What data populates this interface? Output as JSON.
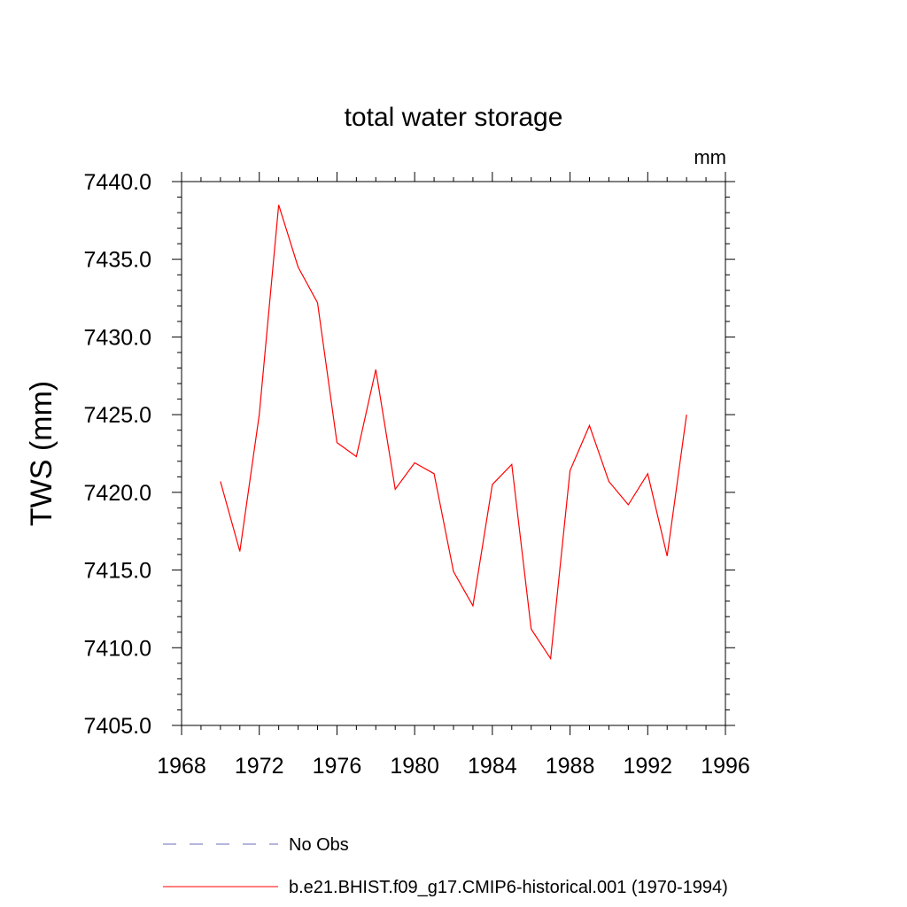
{
  "chart_data": {
    "type": "line",
    "title": "total water storage",
    "units_label": "mm",
    "ylabel": "TWS  (mm)",
    "xlabel": "",
    "xlim": [
      1968,
      1996
    ],
    "ylim": [
      7405.0,
      7440.0
    ],
    "x_ticks": [
      1968,
      1972,
      1976,
      1980,
      1984,
      1988,
      1992,
      1996
    ],
    "x_tick_labels": [
      "1968",
      "1972",
      "1976",
      "1980",
      "1984",
      "1988",
      "1992",
      "1996"
    ],
    "y_ticks": [
      7405.0,
      7410.0,
      7415.0,
      7420.0,
      7425.0,
      7430.0,
      7435.0,
      7440.0
    ],
    "y_tick_labels": [
      "7405.0",
      "7410.0",
      "7415.0",
      "7420.0",
      "7425.0",
      "7430.0",
      "7435.0",
      "7440.0"
    ],
    "grid": false,
    "legend_position": "bottom",
    "series": [
      {
        "name": "No Obs",
        "color": "#6b6bb8",
        "style": "dashed",
        "x": [],
        "values": []
      },
      {
        "name": "b.e21.BHIST.f09_g17.CMIP6-historical.001 (1970-1994)",
        "color": "#ff0000",
        "style": "solid",
        "x": [
          1970,
          1971,
          1972,
          1973,
          1974,
          1975,
          1976,
          1977,
          1978,
          1979,
          1980,
          1981,
          1982,
          1983,
          1984,
          1985,
          1986,
          1987,
          1988,
          1989,
          1990,
          1991,
          1992,
          1993,
          1994
        ],
        "values": [
          7420.7,
          7416.2,
          7425.0,
          7438.5,
          7434.5,
          7432.2,
          7423.2,
          7422.3,
          7427.9,
          7420.2,
          7421.9,
          7421.2,
          7414.9,
          7412.7,
          7420.5,
          7421.8,
          7411.2,
          7409.3,
          7421.4,
          7424.3,
          7420.7,
          7419.2,
          7421.2,
          7415.9,
          7425.0
        ]
      }
    ]
  }
}
